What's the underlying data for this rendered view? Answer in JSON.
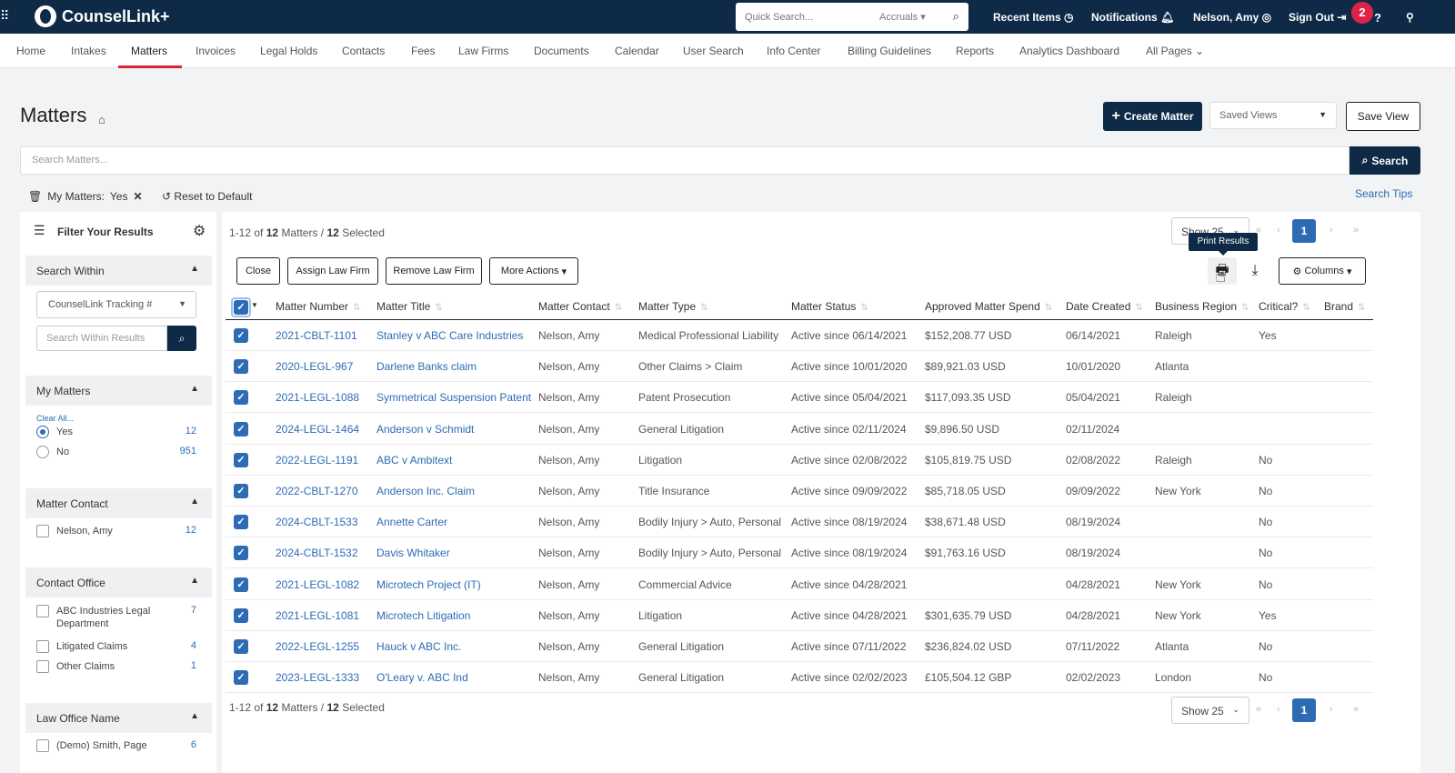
{
  "topbar": {
    "app_name": "CounselLink+",
    "quick_search_placeholder": "Quick Search...",
    "quick_search_scope": "Accruals",
    "recent_items": "Recent Items",
    "notifications": "Notifications",
    "user": "Nelson, Amy",
    "sign_out": "Sign Out",
    "badge_count": "2",
    "help": "?"
  },
  "nav": {
    "items": [
      "Home",
      "Intakes",
      "Matters",
      "Invoices",
      "Legal Holds",
      "Contacts",
      "Fees",
      "Law Firms",
      "Documents",
      "Calendar",
      "User Search",
      "Info Center",
      "Billing Guidelines",
      "Reports",
      "Analytics Dashboard",
      "All Pages"
    ],
    "active": "Matters"
  },
  "page": {
    "title": "Matters",
    "create_button": "Create Matter",
    "saved_views": "Saved Views",
    "save_view": "Save View",
    "search_placeholder": "Search Matters...",
    "search_button": "Search",
    "chip_label": "My Matters:",
    "chip_value": "Yes",
    "reset": "Reset to Default",
    "search_tips": "Search Tips"
  },
  "sidebar": {
    "title": "Filter Your Results",
    "search_within": {
      "label": "Search Within",
      "select_value": "CounselLink Tracking #",
      "input_placeholder": "Search Within Results"
    },
    "my_matters": {
      "label": "My Matters",
      "clear_all": "Clear All...",
      "options": [
        {
          "label": "Yes",
          "count": "12",
          "selected": true
        },
        {
          "label": "No",
          "count": "951",
          "selected": false
        }
      ]
    },
    "matter_contact": {
      "label": "Matter Contact",
      "options": [
        {
          "label": "Nelson, Amy",
          "count": "12"
        }
      ]
    },
    "contact_office": {
      "label": "Contact Office",
      "options": [
        {
          "label": "ABC Industries Legal Department",
          "count": "7"
        },
        {
          "label": "Litigated Claims",
          "count": "4"
        },
        {
          "label": "Other Claims",
          "count": "1"
        }
      ]
    },
    "law_office": {
      "label": "Law Office Name",
      "options": [
        {
          "label": "(Demo) Smith, Page",
          "count": "6"
        }
      ]
    }
  },
  "results": {
    "range": "1-12",
    "of": "of",
    "total": "12",
    "noun": "Matters",
    "sep": "/",
    "selected": "12",
    "selected_label": "Selected",
    "show": "Show 25",
    "current_page": "1",
    "tooltip": "Print Results",
    "actions": [
      "Close",
      "Assign Law Firm",
      "Remove Law Firm",
      "More Actions"
    ],
    "columns_button": "Columns",
    "columns": [
      "Matter Number",
      "Matter Title",
      "Matter Contact",
      "Matter Type",
      "Matter Status",
      "Approved Matter Spend",
      "Date Created",
      "Business Region",
      "Critical?",
      "Brand"
    ],
    "rows": [
      {
        "number": "2021-CBLT-1101",
        "title": "Stanley v ABC Care Industries",
        "contact": "Nelson, Amy",
        "type": "Medical Professional Liability",
        "status": "Active since 06/14/2021",
        "spend": "$152,208.77 USD",
        "created": "06/14/2021",
        "region": "Raleigh",
        "critical": "Yes",
        "brand": ""
      },
      {
        "number": "2020-LEGL-967",
        "title": "Darlene Banks claim",
        "contact": "Nelson, Amy",
        "type": "Other Claims > Claim",
        "status": "Active since 10/01/2020",
        "spend": "$89,921.03 USD",
        "created": "10/01/2020",
        "region": "Atlanta",
        "critical": "",
        "brand": ""
      },
      {
        "number": "2021-LEGL-1088",
        "title": "Symmetrical Suspension Patent",
        "contact": "Nelson, Amy",
        "type": "Patent Prosecution",
        "status": "Active since 05/04/2021",
        "spend": "$117,093.35 USD",
        "created": "05/04/2021",
        "region": "Raleigh",
        "critical": "",
        "brand": ""
      },
      {
        "number": "2024-LEGL-1464",
        "title": "Anderson v Schmidt",
        "contact": "Nelson, Amy",
        "type": "General Litigation",
        "status": "Active since 02/11/2024",
        "spend": "$9,896.50 USD",
        "created": "02/11/2024",
        "region": "",
        "critical": "",
        "brand": ""
      },
      {
        "number": "2022-LEGL-1191",
        "title": "ABC v Ambitext",
        "contact": "Nelson, Amy",
        "type": "Litigation",
        "status": "Active since 02/08/2022",
        "spend": "$105,819.75 USD",
        "created": "02/08/2022",
        "region": "Raleigh",
        "critical": "No",
        "brand": ""
      },
      {
        "number": "2022-CBLT-1270",
        "title": "Anderson Inc. Claim",
        "contact": "Nelson, Amy",
        "type": "Title Insurance",
        "status": "Active since 09/09/2022",
        "spend": "$85,718.05 USD",
        "created": "09/09/2022",
        "region": "New York",
        "critical": "No",
        "brand": ""
      },
      {
        "number": "2024-CBLT-1533",
        "title": "Annette Carter",
        "contact": "Nelson, Amy",
        "type": "Bodily Injury > Auto, Personal",
        "status": "Active since 08/19/2024",
        "spend": "$38,671.48 USD",
        "created": "08/19/2024",
        "region": "",
        "critical": "No",
        "brand": ""
      },
      {
        "number": "2024-CBLT-1532",
        "title": "Davis Whitaker",
        "contact": "Nelson, Amy",
        "type": "Bodily Injury > Auto, Personal",
        "status": "Active since 08/19/2024",
        "spend": "$91,763.16 USD",
        "created": "08/19/2024",
        "region": "",
        "critical": "No",
        "brand": ""
      },
      {
        "number": "2021-LEGL-1082",
        "title": "Microtech Project (IT)",
        "contact": "Nelson, Amy",
        "type": "Commercial Advice",
        "status": "Active since 04/28/2021",
        "spend": "",
        "created": "04/28/2021",
        "region": "New York",
        "critical": "No",
        "brand": ""
      },
      {
        "number": "2021-LEGL-1081",
        "title": "Microtech Litigation",
        "contact": "Nelson, Amy",
        "type": "Litigation",
        "status": "Active since 04/28/2021",
        "spend": "$301,635.79 USD",
        "created": "04/28/2021",
        "region": "New York",
        "critical": "Yes",
        "brand": ""
      },
      {
        "number": "2022-LEGL-1255",
        "title": "Hauck v ABC Inc.",
        "contact": "Nelson, Amy",
        "type": "General Litigation",
        "status": "Active since 07/11/2022",
        "spend": "$236,824.02 USD",
        "created": "07/11/2022",
        "region": "Atlanta",
        "critical": "No",
        "brand": ""
      },
      {
        "number": "2023-LEGL-1333",
        "title": "O'Leary v. ABC Ind",
        "contact": "Nelson, Amy",
        "type": "General Litigation",
        "status": "Active since 02/02/2023",
        "spend": "£105,504.12 GBP",
        "created": "02/02/2023",
        "region": "London",
        "critical": "No",
        "brand": ""
      }
    ]
  },
  "colors": {
    "navy": "#0e2a47",
    "accent_blue": "#2d6bb5",
    "active_underline": "#d2283c",
    "badge": "#e0224b"
  },
  "icons": [
    "apps-grid-icon",
    "logo-icon",
    "search-icon",
    "clock-icon",
    "bell-icon",
    "user-circle-icon",
    "sign-out-icon",
    "help-icon",
    "location-icon",
    "home-icon",
    "plus-icon",
    "trash-icon",
    "reset-icon",
    "filter-list-icon",
    "gear-icon",
    "print-icon",
    "download-icon",
    "pointer-cursor-icon"
  ]
}
